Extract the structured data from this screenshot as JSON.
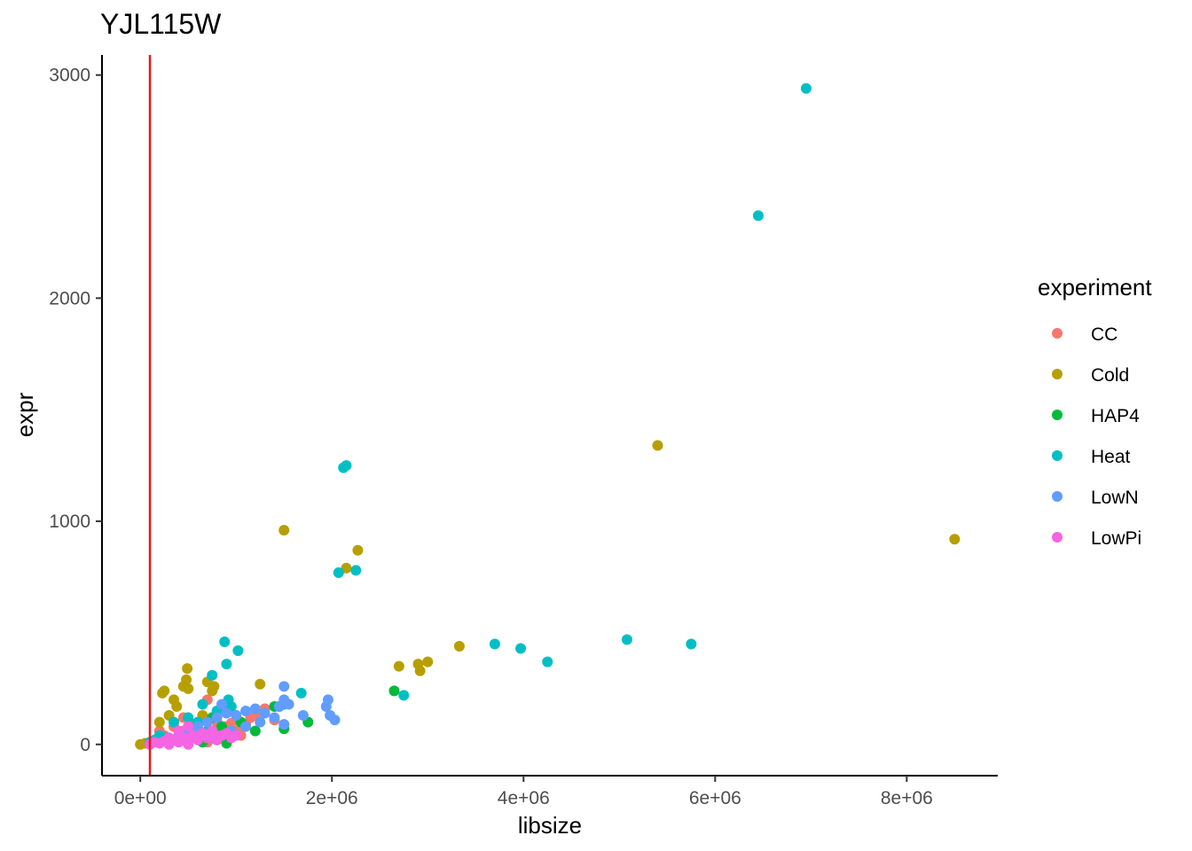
{
  "chart_data": {
    "type": "scatter",
    "title": "YJL115W",
    "xlabel": "libsize",
    "ylabel": "expr",
    "xlim": [
      -400000,
      8950000
    ],
    "ylim": [
      -140,
      3090
    ],
    "x_ticks": [
      0,
      2000000,
      4000000,
      6000000,
      8000000
    ],
    "x_tick_labels": [
      "0e+00",
      "2e+06",
      "4e+06",
      "6e+06",
      "8e+06"
    ],
    "y_ticks": [
      0,
      1000,
      2000,
      3000
    ],
    "y_tick_labels": [
      "0",
      "1000",
      "2000",
      "3000"
    ],
    "grid": false,
    "vline": {
      "x": 100000,
      "color": "#e31a1c"
    },
    "legend": {
      "title": "experiment",
      "position": "right"
    },
    "series": [
      {
        "name": "CC",
        "color": "#F8766D",
        "points": [
          [
            200000,
            60
          ],
          [
            250000,
            40
          ],
          [
            300000,
            20
          ],
          [
            350000,
            80
          ],
          [
            400000,
            30
          ],
          [
            450000,
            120
          ],
          [
            500000,
            50
          ],
          [
            550000,
            70
          ],
          [
            600000,
            90
          ],
          [
            650000,
            40
          ],
          [
            700000,
            200
          ],
          [
            750000,
            60
          ],
          [
            800000,
            100
          ],
          [
            850000,
            30
          ],
          [
            900000,
            80
          ],
          [
            950000,
            50
          ],
          [
            1000000,
            110
          ],
          [
            1050000,
            70
          ],
          [
            1100000,
            90
          ],
          [
            1200000,
            130
          ],
          [
            1300000,
            160
          ],
          [
            1400000,
            110
          ],
          [
            400000,
            15
          ],
          [
            600000,
            25
          ],
          [
            700000,
            10
          ],
          [
            800000,
            45
          ],
          [
            900000,
            20
          ],
          [
            950000,
            95
          ],
          [
            1050000,
            40
          ],
          [
            1000000,
            60
          ],
          [
            1150000,
            120
          ],
          [
            450000,
            60
          ]
        ]
      },
      {
        "name": "Cold",
        "color": "#B79F00",
        "points": [
          [
            0,
            0
          ],
          [
            50000,
            5
          ],
          [
            200000,
            100
          ],
          [
            230000,
            230
          ],
          [
            250000,
            240
          ],
          [
            300000,
            130
          ],
          [
            350000,
            200
          ],
          [
            380000,
            170
          ],
          [
            450000,
            260
          ],
          [
            480000,
            290
          ],
          [
            490000,
            340
          ],
          [
            500000,
            250
          ],
          [
            700000,
            280
          ],
          [
            750000,
            240
          ],
          [
            770000,
            260
          ],
          [
            850000,
            160
          ],
          [
            650000,
            130
          ],
          [
            1250000,
            270
          ],
          [
            1500000,
            960
          ],
          [
            2150000,
            790
          ],
          [
            2270000,
            870
          ],
          [
            2700000,
            350
          ],
          [
            2900000,
            360
          ],
          [
            2920000,
            330
          ],
          [
            3000000,
            370
          ],
          [
            3330000,
            440
          ],
          [
            5400000,
            1340
          ],
          [
            8500000,
            920
          ],
          [
            550000,
            90
          ],
          [
            600000,
            50
          ]
        ]
      },
      {
        "name": "HAP4",
        "color": "#00BA38",
        "points": [
          [
            650000,
            10
          ],
          [
            900000,
            5
          ],
          [
            1200000,
            60
          ],
          [
            1500000,
            70
          ],
          [
            1750000,
            100
          ],
          [
            2650000,
            240
          ],
          [
            750000,
            120
          ],
          [
            850000,
            80
          ],
          [
            1050000,
            100
          ],
          [
            1400000,
            170
          ],
          [
            500000,
            20
          ],
          [
            300000,
            10
          ]
        ]
      },
      {
        "name": "Heat",
        "color": "#00BFC4",
        "points": [
          [
            100000,
            10
          ],
          [
            150000,
            20
          ],
          [
            200000,
            40
          ],
          [
            250000,
            30
          ],
          [
            350000,
            100
          ],
          [
            500000,
            120
          ],
          [
            650000,
            180
          ],
          [
            750000,
            310
          ],
          [
            800000,
            150
          ],
          [
            880000,
            460
          ],
          [
            900000,
            360
          ],
          [
            920000,
            200
          ],
          [
            950000,
            170
          ],
          [
            1020000,
            420
          ],
          [
            1450000,
            170
          ],
          [
            1500000,
            180
          ],
          [
            1680000,
            230
          ],
          [
            2070000,
            770
          ],
          [
            2120000,
            1240
          ],
          [
            2150000,
            1250
          ],
          [
            2250000,
            780
          ],
          [
            2750000,
            220
          ],
          [
            3700000,
            450
          ],
          [
            3970000,
            430
          ],
          [
            4250000,
            370
          ],
          [
            5080000,
            470
          ],
          [
            5750000,
            450
          ],
          [
            6450000,
            2370
          ],
          [
            6950000,
            2940
          ],
          [
            600000,
            100
          ],
          [
            700000,
            60
          ]
        ]
      },
      {
        "name": "LowN",
        "color": "#619CFF",
        "points": [
          [
            300000,
            20
          ],
          [
            400000,
            40
          ],
          [
            500000,
            60
          ],
          [
            600000,
            80
          ],
          [
            700000,
            100
          ],
          [
            800000,
            120
          ],
          [
            850000,
            180
          ],
          [
            900000,
            140
          ],
          [
            1000000,
            130
          ],
          [
            1100000,
            150
          ],
          [
            1200000,
            160
          ],
          [
            1300000,
            140
          ],
          [
            1450000,
            170
          ],
          [
            1500000,
            200
          ],
          [
            1550000,
            180
          ],
          [
            1700000,
            130
          ],
          [
            1500000,
            260
          ],
          [
            1940000,
            170
          ],
          [
            1960000,
            200
          ],
          [
            1980000,
            130
          ],
          [
            2030000,
            110
          ],
          [
            1500000,
            90
          ],
          [
            1400000,
            120
          ],
          [
            800000,
            20
          ],
          [
            950000,
            60
          ],
          [
            750000,
            30
          ],
          [
            1250000,
            100
          ],
          [
            1100000,
            80
          ]
        ]
      },
      {
        "name": "LowPi",
        "color": "#F564E3",
        "points": [
          [
            100000,
            0
          ],
          [
            150000,
            10
          ],
          [
            200000,
            5
          ],
          [
            250000,
            15
          ],
          [
            300000,
            0
          ],
          [
            350000,
            20
          ],
          [
            400000,
            10
          ],
          [
            450000,
            30
          ],
          [
            500000,
            0
          ],
          [
            550000,
            40
          ],
          [
            600000,
            20
          ],
          [
            650000,
            50
          ],
          [
            700000,
            30
          ],
          [
            750000,
            60
          ],
          [
            800000,
            20
          ],
          [
            850000,
            40
          ],
          [
            900000,
            50
          ],
          [
            950000,
            30
          ],
          [
            1000000,
            40
          ],
          [
            400000,
            60
          ],
          [
            500000,
            80
          ],
          [
            300000,
            30
          ]
        ]
      }
    ]
  }
}
